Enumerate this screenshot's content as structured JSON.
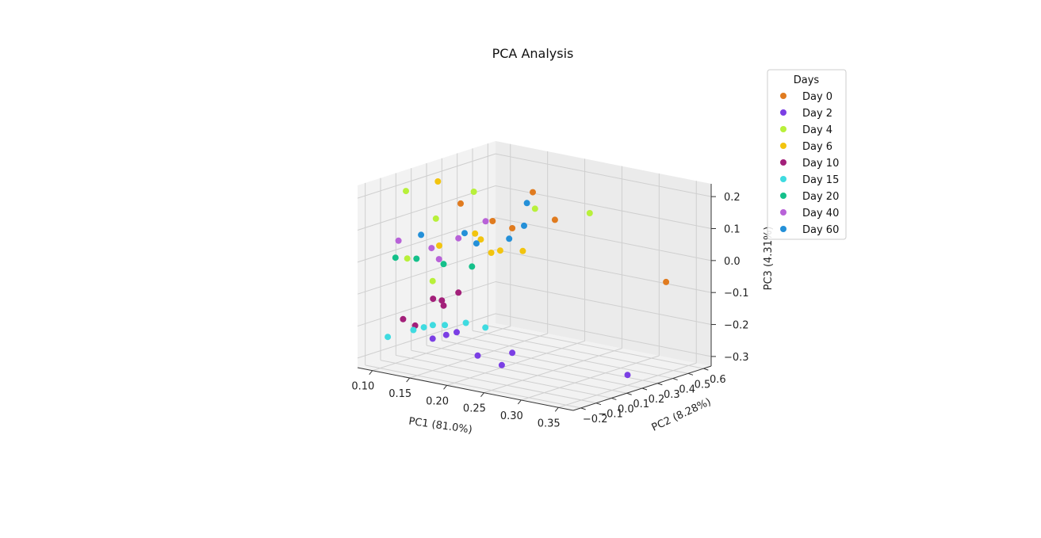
{
  "chart_data": {
    "type": "scatter",
    "projection": "3d",
    "title": "PCA Analysis",
    "xlabel": "PC1 (81.0%)",
    "ylabel": "PC2 (8.28%)",
    "zlabel": "PC3 (4.31%)",
    "xlim": [
      0.08,
      0.37
    ],
    "ylim": [
      -0.25,
      0.65
    ],
    "zlim": [
      -0.33,
      0.24
    ],
    "xticks": [
      "0.10",
      "0.15",
      "0.20",
      "0.25",
      "0.30",
      "0.35"
    ],
    "yticks": [
      "−0.2",
      "−0.1",
      "0.0",
      "0.1",
      "0.2",
      "0.3",
      "0.4",
      "0.5",
      "0.6"
    ],
    "zticks": [
      "−0.3",
      "−0.2",
      "−0.1",
      "0.0",
      "0.1",
      "0.2"
    ],
    "grid": true,
    "legend": {
      "title": "Days",
      "placement": "upper-right"
    },
    "series": [
      {
        "name": "Day 0",
        "color": "#e07b1f",
        "points": [
          [
            0.13,
            0.18,
            0.14
          ],
          [
            0.21,
            0.0,
            0.15
          ],
          [
            0.22,
            0.08,
            0.12
          ],
          [
            0.26,
            0.02,
            0.26
          ],
          [
            0.3,
            -0.03,
            0.2
          ],
          [
            0.33,
            0.55,
            -0.07
          ]
        ]
      },
      {
        "name": "Day 2",
        "color": "#7b3fe4",
        "points": [
          [
            0.15,
            -0.1,
            -0.23
          ],
          [
            0.16,
            -0.06,
            -0.22
          ],
          [
            0.17,
            -0.04,
            -0.21
          ],
          [
            0.19,
            0.0,
            -0.28
          ],
          [
            0.21,
            0.06,
            -0.31
          ],
          [
            0.22,
            0.08,
            -0.27
          ],
          [
            0.34,
            0.25,
            -0.31
          ]
        ]
      },
      {
        "name": "Day 4",
        "color": "#b8f03a",
        "points": [
          [
            0.11,
            -0.08,
            0.21
          ],
          [
            0.12,
            -0.12,
            0.01
          ],
          [
            0.14,
            -0.03,
            0.13
          ],
          [
            0.15,
            -0.1,
            -0.05
          ],
          [
            0.16,
            0.12,
            0.2
          ],
          [
            0.23,
            0.18,
            0.17
          ],
          [
            0.32,
            0.1,
            0.21
          ]
        ]
      },
      {
        "name": "Day 6",
        "color": "#f2c40f",
        "points": [
          [
            0.12,
            0.08,
            0.22
          ],
          [
            0.13,
            0.04,
            0.03
          ],
          [
            0.17,
            0.08,
            0.08
          ],
          [
            0.19,
            0.02,
            0.08
          ],
          [
            0.2,
            0.04,
            0.04
          ],
          [
            0.21,
            0.05,
            0.05
          ],
          [
            0.23,
            0.1,
            0.05
          ]
        ]
      },
      {
        "name": "Day 10",
        "color": "#a3207a",
        "points": [
          [
            0.1,
            -0.05,
            -0.2
          ],
          [
            0.11,
            -0.02,
            -0.22
          ],
          [
            0.13,
            0.0,
            -0.13
          ],
          [
            0.14,
            0.02,
            -0.15
          ],
          [
            0.15,
            -0.04,
            -0.12
          ],
          [
            0.16,
            0.02,
            -0.1
          ]
        ]
      },
      {
        "name": "Day 15",
        "color": "#3fdbe0",
        "points": [
          [
            0.1,
            -0.15,
            -0.24
          ],
          [
            0.12,
            -0.08,
            -0.22
          ],
          [
            0.13,
            -0.06,
            -0.21
          ],
          [
            0.14,
            -0.05,
            -0.2
          ],
          [
            0.15,
            -0.02,
            -0.2
          ],
          [
            0.17,
            0.02,
            -0.19
          ],
          [
            0.19,
            0.05,
            -0.2
          ]
        ]
      },
      {
        "name": "Day 20",
        "color": "#14c08a",
        "points": [
          [
            0.1,
            -0.1,
            0.0
          ],
          [
            0.12,
            -0.06,
            0.0
          ],
          [
            0.14,
            0.02,
            -0.02
          ],
          [
            0.17,
            0.06,
            -0.02
          ]
        ]
      },
      {
        "name": "Day 40",
        "color": "#b862d8",
        "points": [
          [
            0.1,
            -0.08,
            0.05
          ],
          [
            0.13,
            -0.01,
            0.03
          ],
          [
            0.14,
            -0.01,
            0.0
          ],
          [
            0.16,
            0.02,
            0.07
          ],
          [
            0.18,
            0.1,
            0.12
          ]
        ]
      },
      {
        "name": "Day 60",
        "color": "#2490d8",
        "points": [
          [
            0.12,
            -0.03,
            0.07
          ],
          [
            0.16,
            0.06,
            0.08
          ],
          [
            0.18,
            0.04,
            0.06
          ],
          [
            0.22,
            0.06,
            0.09
          ],
          [
            0.24,
            0.06,
            0.14
          ],
          [
            0.25,
            0.03,
            0.22
          ]
        ]
      }
    ]
  }
}
